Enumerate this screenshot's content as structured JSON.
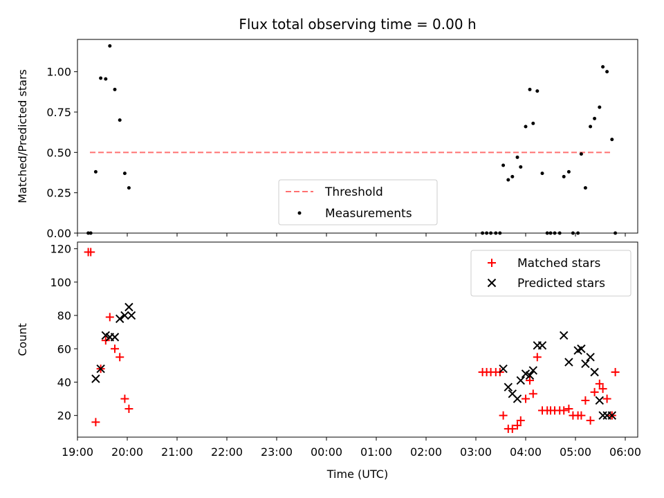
{
  "title": "Flux total observing time = 0.00 h",
  "colors": {
    "threshold": "#ff7070",
    "matched": "#ff0000",
    "predicted": "#000000",
    "measurement": "#000000"
  },
  "chart_data": [
    {
      "type": "scatter",
      "panel": "top",
      "ylabel": "Matched/Predicted stars",
      "xlabel": "",
      "xlim": [
        "19:00",
        "06:15"
      ],
      "ylim": [
        0,
        1.2
      ],
      "y_ticks": [
        "0.00",
        "0.25",
        "0.50",
        "0.75",
        "1.00"
      ],
      "legend": {
        "placement": "lower-center",
        "entries": [
          "Threshold",
          "Measurements"
        ]
      },
      "threshold": {
        "name": "Threshold",
        "value": 0.5,
        "x_start": "19:15",
        "x_end": "05:45"
      },
      "series": [
        {
          "name": "Measurements",
          "x": [
            "19:13",
            "19:16",
            "19:22",
            "19:28",
            "19:34",
            "19:39",
            "19:45",
            "19:51",
            "19:57",
            "20:02",
            "03:08",
            "03:13",
            "03:18",
            "03:24",
            "03:29",
            "03:33",
            "03:39",
            "03:44",
            "03:50",
            "03:54",
            "04:00",
            "04:05",
            "04:09",
            "04:14",
            "04:20",
            "04:26",
            "04:30",
            "04:35",
            "04:41",
            "04:46",
            "04:52",
            "04:57",
            "05:03",
            "05:07",
            "05:12",
            "05:18",
            "05:23",
            "05:29",
            "05:33",
            "05:38",
            "05:44",
            "05:48"
          ],
          "y": [
            0,
            0,
            0.38,
            0.96,
            0.955,
            1.16,
            0.89,
            0.7,
            0.37,
            0.28,
            0,
            0,
            0,
            0,
            0,
            0.42,
            0.33,
            0.35,
            0.47,
            0.41,
            0.66,
            0.89,
            0.68,
            0.88,
            0.37,
            0,
            0,
            0,
            0,
            0.35,
            0.38,
            0,
            0,
            0.49,
            0.28,
            0.66,
            0.71,
            0.78,
            1.03,
            1.0,
            0.58,
            0
          ]
        }
      ]
    },
    {
      "type": "scatter",
      "panel": "bottom",
      "ylabel": "Count",
      "xlabel": "Time (UTC)",
      "xlim": [
        "19:00",
        "06:15"
      ],
      "ylim": [
        7,
        124
      ],
      "x_ticks": [
        "19:00",
        "20:00",
        "21:00",
        "22:00",
        "23:00",
        "00:00",
        "01:00",
        "02:00",
        "03:00",
        "04:00",
        "05:00",
        "06:00"
      ],
      "y_ticks": [
        "20",
        "40",
        "60",
        "80",
        "100",
        "120"
      ],
      "legend": {
        "placement": "top-right",
        "entries": [
          "Matched stars",
          "Predicted stars"
        ]
      },
      "series": [
        {
          "name": "Matched stars",
          "marker": "+",
          "x": [
            "19:13",
            "19:16",
            "19:22",
            "19:28",
            "19:34",
            "19:39",
            "19:45",
            "19:51",
            "19:57",
            "20:02",
            "03:08",
            "03:13",
            "03:18",
            "03:24",
            "03:29",
            "03:33",
            "03:39",
            "03:44",
            "03:50",
            "03:54",
            "04:00",
            "04:05",
            "04:09",
            "04:14",
            "04:20",
            "04:26",
            "04:30",
            "04:35",
            "04:41",
            "04:46",
            "04:52",
            "04:57",
            "05:03",
            "05:07",
            "05:12",
            "05:18",
            "05:23",
            "05:29",
            "05:33",
            "05:38",
            "05:44",
            "05:48"
          ],
          "y": [
            118,
            118,
            16,
            48,
            65,
            79,
            60,
            55,
            30,
            24,
            46,
            46,
            46,
            46,
            46,
            20,
            12,
            12,
            14,
            17,
            30,
            41,
            33,
            55,
            23,
            23,
            23,
            23,
            23,
            23,
            24,
            20,
            20,
            20,
            29,
            17,
            34,
            39,
            36,
            30,
            20,
            46
          ]
        },
        {
          "name": "Predicted stars",
          "marker": "x",
          "x": [
            "19:22",
            "19:28",
            "19:34",
            "19:39",
            "19:45",
            "19:51",
            "19:57",
            "20:02",
            "20:05",
            "03:33",
            "03:39",
            "03:44",
            "03:50",
            "03:54",
            "04:00",
            "04:05",
            "04:09",
            "04:14",
            "04:20",
            "04:46",
            "04:52",
            "05:03",
            "05:07",
            "05:12",
            "05:18",
            "05:23",
            "05:29",
            "05:33",
            "05:38",
            "05:44"
          ],
          "y": [
            42,
            48,
            68,
            67,
            67,
            78,
            80,
            85,
            80,
            48,
            37,
            33,
            30,
            41,
            45,
            44,
            47,
            62,
            62,
            68,
            52,
            59,
            60,
            51,
            55,
            46,
            29,
            20,
            20,
            20
          ]
        }
      ]
    }
  ]
}
